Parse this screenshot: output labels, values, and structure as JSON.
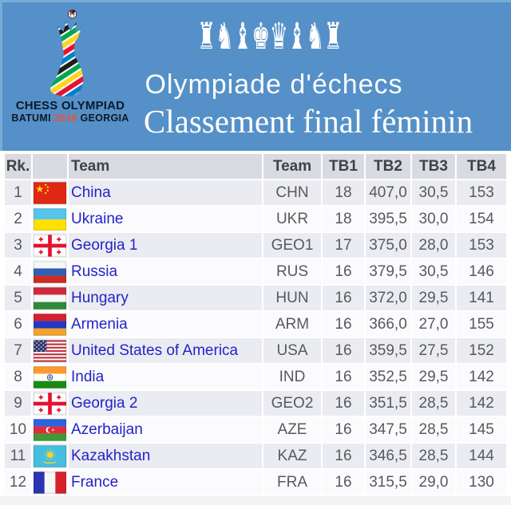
{
  "banner": {
    "logo": {
      "title": "CHESS OLYMPIAD",
      "city": "BATUMI",
      "year": "2018",
      "country": "GEORGIA"
    },
    "pieces": [
      "♜",
      "♞",
      "♝",
      "♚",
      "♛",
      "♝",
      "♞",
      "♜"
    ],
    "title": "Olympiade d'échecs",
    "subtitle": "Classement final féminin"
  },
  "colors": {
    "banner_bg": "#5590C8",
    "header_bg": "#D9DBE1",
    "header_text": "#3E4348",
    "row_odd": "#EBECF1",
    "row_even": "#FBFBFD",
    "team_link": "#2323C8",
    "number_text": "#58595C",
    "logo_year_accent": "#F05133"
  },
  "table": {
    "columns": [
      "Rk.",
      "",
      "Team",
      "Team",
      "TB1",
      "TB2",
      "TB3",
      "TB4"
    ],
    "rows": [
      {
        "rank": "1",
        "flag": "china",
        "team": "China",
        "code": "CHN",
        "tb1": "18",
        "tb2": "407,0",
        "tb3": "30,5",
        "tb4": "153"
      },
      {
        "rank": "2",
        "flag": "ukraine",
        "team": "Ukraine",
        "code": "UKR",
        "tb1": "18",
        "tb2": "395,5",
        "tb3": "30,0",
        "tb4": "154"
      },
      {
        "rank": "3",
        "flag": "georgia",
        "team": "Georgia 1",
        "code": "GEO1",
        "tb1": "17",
        "tb2": "375,0",
        "tb3": "28,0",
        "tb4": "153"
      },
      {
        "rank": "4",
        "flag": "russia",
        "team": "Russia",
        "code": "RUS",
        "tb1": "16",
        "tb2": "379,5",
        "tb3": "30,5",
        "tb4": "146"
      },
      {
        "rank": "5",
        "flag": "hungary",
        "team": "Hungary",
        "code": "HUN",
        "tb1": "16",
        "tb2": "372,0",
        "tb3": "29,5",
        "tb4": "141"
      },
      {
        "rank": "6",
        "flag": "armenia",
        "team": "Armenia",
        "code": "ARM",
        "tb1": "16",
        "tb2": "366,0",
        "tb3": "27,0",
        "tb4": "155"
      },
      {
        "rank": "7",
        "flag": "usa",
        "team": "United States of America",
        "code": "USA",
        "tb1": "16",
        "tb2": "359,5",
        "tb3": "27,5",
        "tb4": "152"
      },
      {
        "rank": "8",
        "flag": "india",
        "team": "India",
        "code": "IND",
        "tb1": "16",
        "tb2": "352,5",
        "tb3": "29,5",
        "tb4": "142"
      },
      {
        "rank": "9",
        "flag": "georgia",
        "team": "Georgia 2",
        "code": "GEO2",
        "tb1": "16",
        "tb2": "351,5",
        "tb3": "28,5",
        "tb4": "142"
      },
      {
        "rank": "10",
        "flag": "azerbaijan",
        "team": "Azerbaijan",
        "code": "AZE",
        "tb1": "16",
        "tb2": "347,5",
        "tb3": "28,5",
        "tb4": "145"
      },
      {
        "rank": "11",
        "flag": "kazakhstan",
        "team": "Kazakhstan",
        "code": "KAZ",
        "tb1": "16",
        "tb2": "346,5",
        "tb3": "28,5",
        "tb4": "144"
      },
      {
        "rank": "12",
        "flag": "france",
        "team": "France",
        "code": "FRA",
        "tb1": "16",
        "tb2": "315,5",
        "tb3": "29,0",
        "tb4": "130"
      }
    ]
  }
}
